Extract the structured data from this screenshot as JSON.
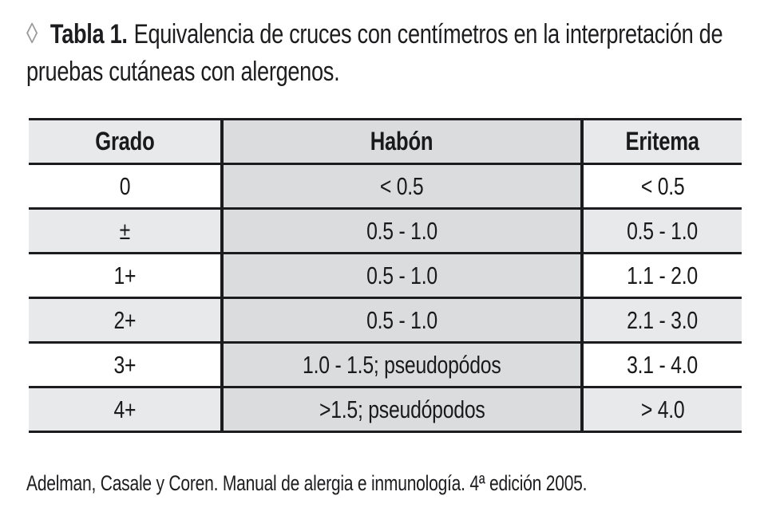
{
  "title": {
    "marker": "◊",
    "label": "Tabla 1.",
    "line1": "Equivalencia de cruces con centímetros en la interpretación de",
    "line2": "pruebas cutáneas con alergenos."
  },
  "table": {
    "columns": [
      "Grado",
      "Habón",
      "Eritema"
    ],
    "rows": [
      {
        "grado": "0",
        "habon": "< 0.5",
        "eritema": "< 0.5"
      },
      {
        "grado": "±",
        "habon": "0.5 - 1.0",
        "eritema": "0.5 - 1.0"
      },
      {
        "grado": "1+",
        "habon": "0.5 - 1.0",
        "eritema": "1.1 - 2.0"
      },
      {
        "grado": "2+",
        "habon": "0.5 - 1.0",
        "eritema": "2.1 - 3.0"
      },
      {
        "grado": "3+",
        "habon": "1.0 - 1.5; pseudopódos",
        "eritema": "3.1 - 4.0"
      },
      {
        "grado": "4+",
        "habon": ">1.5; pseudópodos",
        "eritema": "> 4.0"
      }
    ]
  },
  "footer": {
    "citation": "Adelman, Casale y Coren. Manual de alergia e inmunología. 4ª edición 2005."
  },
  "colors": {
    "shaded_row": "#e8e9eb",
    "habon_column": "#dbdcde",
    "border": "#1c1c1e",
    "text": "#1a1a1a",
    "marker": "#9b9b9d"
  }
}
